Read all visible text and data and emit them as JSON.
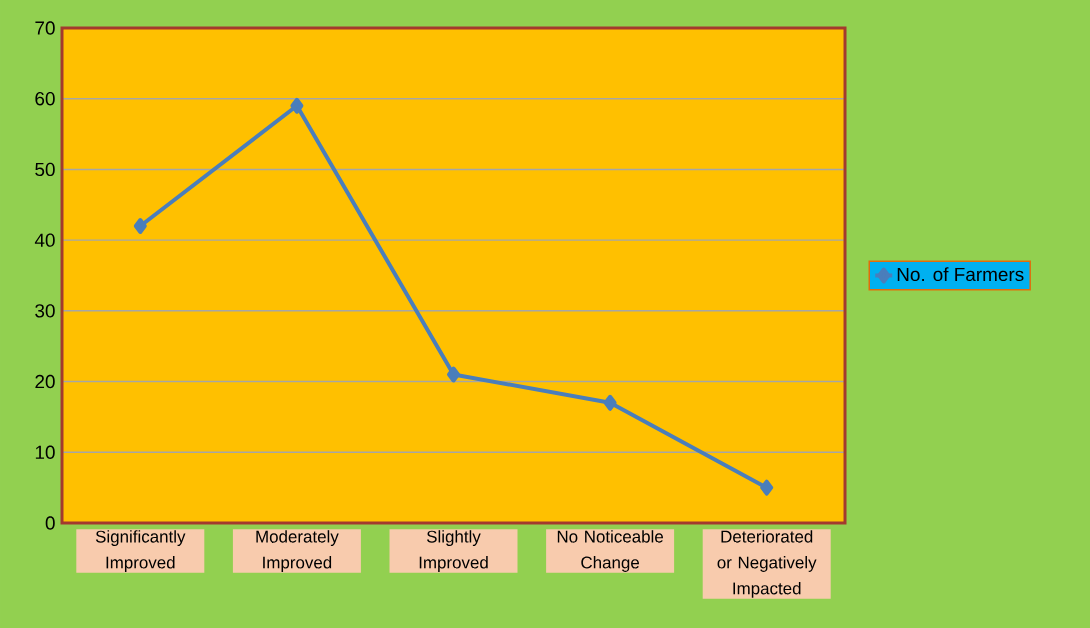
{
  "chart_data": {
    "type": "line",
    "categories": [
      "Significantly Improved",
      "Moderately Improved",
      "Slightly Improved",
      "No Noticeable Change",
      "Deteriorated or Negatively Impacted"
    ],
    "series": [
      {
        "name": "No. of Farmers",
        "color": "#4a7ebb",
        "values": [
          42,
          59,
          21,
          17,
          5
        ]
      }
    ],
    "ylim": [
      0,
      70
    ],
    "yticks": [
      0,
      10,
      20,
      30,
      40,
      50,
      60,
      70
    ],
    "grid": "y",
    "legend": "right",
    "marker": "diamond",
    "line_style": "solid"
  }
}
